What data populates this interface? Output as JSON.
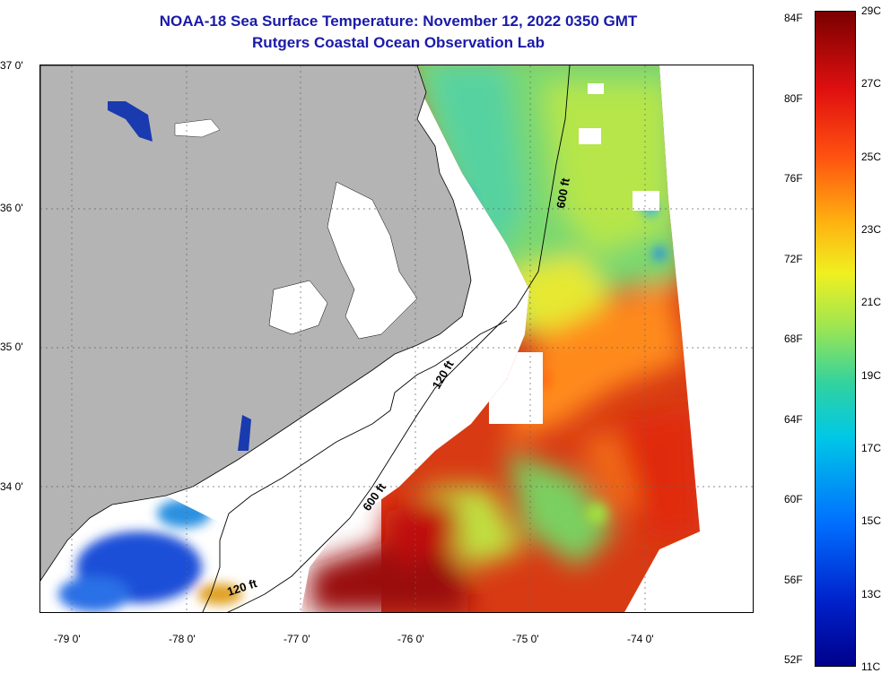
{
  "title": "NOAA-18 Sea Surface Temperature:  November 12, 2022 0350 GMT",
  "subtitle": "Rutgers Coastal Ocean Observation Lab",
  "lat_ticks": [
    {
      "label": "37 0'",
      "value": 37.0
    },
    {
      "label": "36 0'",
      "value": 36.0
    },
    {
      "label": "35 0'",
      "value": 35.0
    },
    {
      "label": "34 0'",
      "value": 34.0
    }
  ],
  "lon_ticks": [
    {
      "label": "-79 0'",
      "value": -79.0
    },
    {
      "label": "-78 0'",
      "value": -78.0
    },
    {
      "label": "-77 0'",
      "value": -77.0
    },
    {
      "label": "-76 0'",
      "value": -76.0
    },
    {
      "label": "-75 0'",
      "value": -75.0
    },
    {
      "label": "-74 0'",
      "value": -74.0
    }
  ],
  "contours": [
    {
      "label": "600 ft"
    },
    {
      "label": "120 ft"
    },
    {
      "label": "600 ft"
    },
    {
      "label": "120 ft"
    }
  ],
  "colorbar": {
    "fahrenheit": [
      "84F",
      "80F",
      "76F",
      "72F",
      "68F",
      "64F",
      "60F",
      "56F",
      "52F"
    ],
    "celsius": [
      "29C",
      "27C",
      "25C",
      "23C",
      "21C",
      "19C",
      "17C",
      "15C",
      "13C",
      "11C"
    ]
  },
  "colors": {
    "land": "#b4b4b4",
    "title": "#1a1aa8",
    "no_data": "#ffffff"
  }
}
